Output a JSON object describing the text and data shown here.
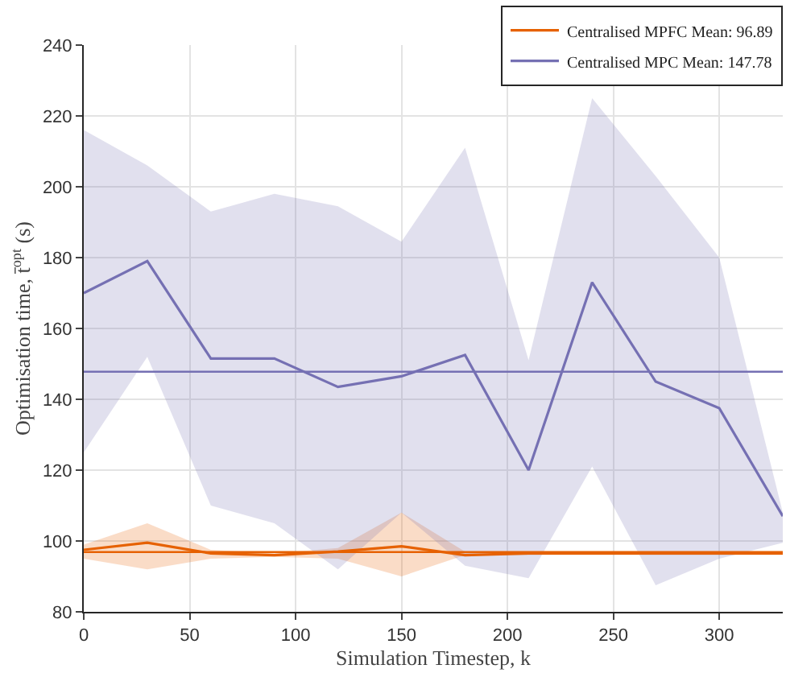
{
  "chart_data": {
    "type": "line",
    "xlabel": "Simulation Timestep, k",
    "ylabel": "Optimisation time, t̄$^{opt}$ (s)",
    "x": [
      0,
      30,
      60,
      90,
      120,
      150,
      180,
      210,
      240,
      270,
      300,
      330
    ],
    "xlim": [
      0,
      330
    ],
    "xticks": [
      0,
      50,
      100,
      150,
      200,
      250,
      300
    ],
    "ylim": [
      80,
      240
    ],
    "yticks": [
      80,
      100,
      120,
      140,
      160,
      180,
      200,
      220,
      240
    ],
    "grid": true,
    "legend": "top right",
    "marker": "none",
    "line_style": "solid",
    "series": [
      {
        "name": "Centralised MPFC Mean: 96.89",
        "color": "#e66101",
        "values": [
          97.5,
          99.5,
          96.5,
          96,
          97,
          98.5,
          96,
          96.5,
          96.5,
          96.5,
          96.5,
          96.5
        ],
        "lower": [
          95,
          92,
          95,
          95.5,
          95,
          90,
          96,
          96,
          96,
          96,
          96,
          96
        ],
        "upper": [
          99,
          105,
          97.5,
          96.5,
          98,
          108,
          97,
          97,
          97,
          97,
          97,
          97
        ]
      },
      {
        "name": "Centralised MPC Mean: 147.78",
        "color": "#7570b3",
        "values": [
          170,
          179,
          151.5,
          151.5,
          143.5,
          146.5,
          152.5,
          120,
          173,
          145,
          137.5,
          107
        ],
        "lower": [
          125,
          152,
          110,
          105,
          92,
          108,
          93,
          89.5,
          121,
          87.5,
          95,
          99.5
        ],
        "upper": [
          216,
          206,
          193,
          198,
          194.5,
          184.5,
          211,
          151,
          225,
          203,
          180,
          108
        ]
      }
    ],
    "ref_lines": [
      {
        "axis": "y",
        "value": 96.89,
        "color": "#e66101"
      },
      {
        "axis": "y",
        "value": 147.78,
        "color": "#7570b3"
      }
    ]
  }
}
